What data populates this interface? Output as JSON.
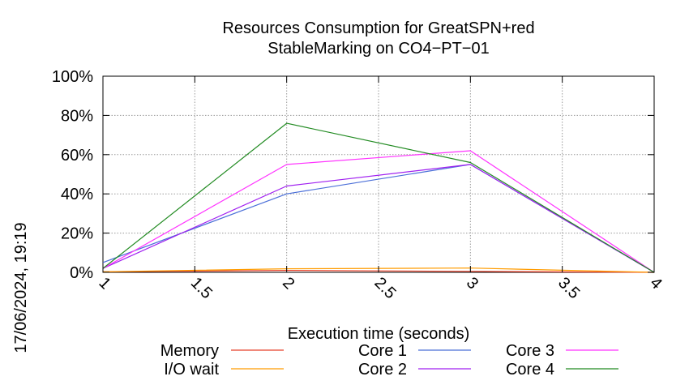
{
  "chart_data": {
    "type": "line",
    "title_line1": "Resources Consumption for GreatSPN+red",
    "title_line2": "StableMarking on CO4−PT−01",
    "xlabel": "Execution time (seconds)",
    "ylabel": "",
    "side_label": "17/06/2024, 19:19",
    "xlim": [
      1,
      4
    ],
    "ylim": [
      0,
      100
    ],
    "x_ticks": [
      1,
      1.5,
      2,
      2.5,
      3,
      3.5,
      4
    ],
    "x_tick_labels": [
      "1",
      "1.5",
      "2",
      "2.5",
      "3",
      "3.5",
      "4"
    ],
    "y_ticks": [
      0,
      20,
      40,
      60,
      80,
      100
    ],
    "y_tick_labels": [
      "0%",
      "20%",
      "40%",
      "60%",
      "80%",
      "100%"
    ],
    "grid": true,
    "legend_position": "bottom",
    "x": [
      1,
      2,
      3,
      4
    ],
    "series": [
      {
        "name": "Memory",
        "color": "#e8402a",
        "values": [
          0.3,
          1.0,
          0.5,
          0
        ]
      },
      {
        "name": "I/O wait",
        "color": "#ff9c00",
        "values": [
          0.3,
          1.8,
          2.2,
          0
        ]
      },
      {
        "name": "Core 1",
        "color": "#4b6fd8",
        "values": [
          5,
          40,
          55,
          0
        ]
      },
      {
        "name": "Core 2",
        "color": "#a020f0",
        "values": [
          2,
          44,
          55,
          0
        ]
      },
      {
        "name": "Core 3",
        "color": "#ff33ff",
        "values": [
          2,
          55,
          62,
          0
        ]
      },
      {
        "name": "Core 4",
        "color": "#228b22",
        "values": [
          2,
          76,
          56,
          0
        ]
      }
    ]
  }
}
